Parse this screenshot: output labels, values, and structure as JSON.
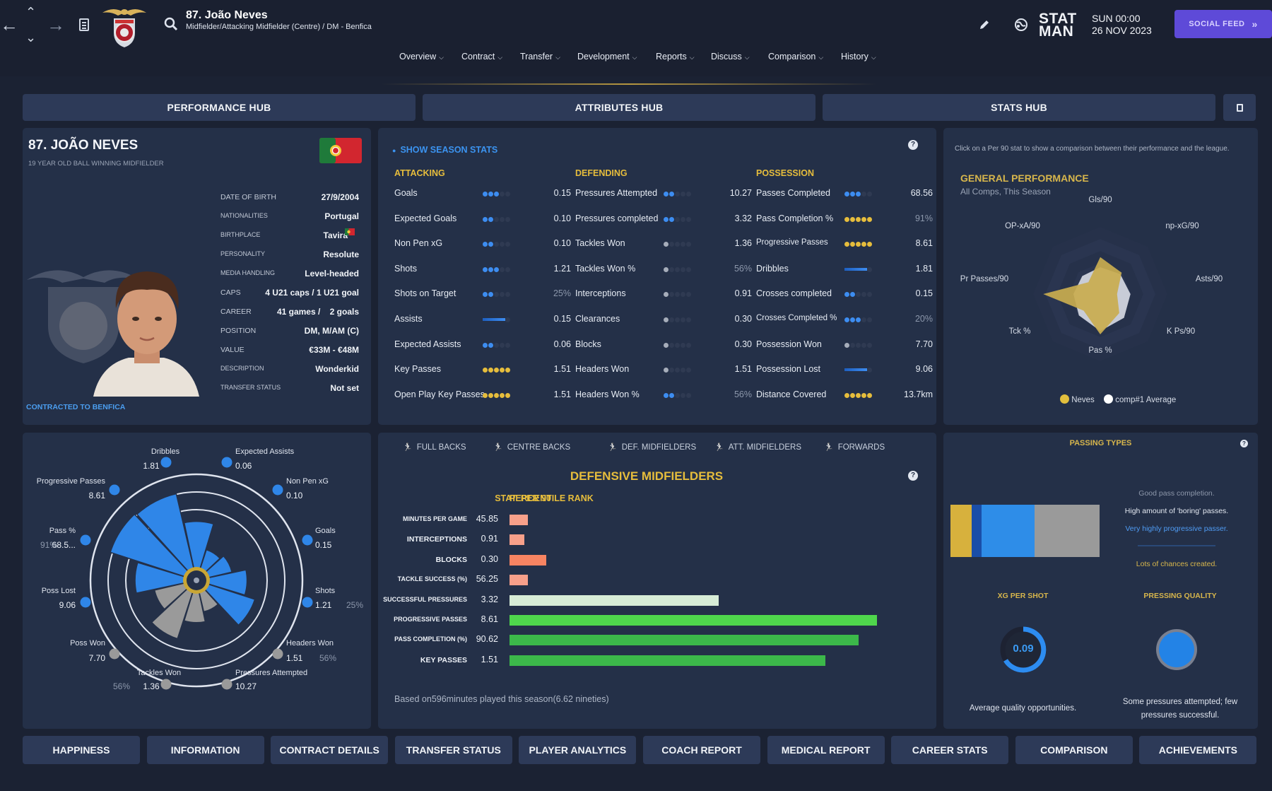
{
  "header": {
    "player_title": "87. João Neves",
    "player_subtitle": "Midfielder/Attacking Midfielder (Centre) / DM - Benfica",
    "stat_line1": "STAT",
    "stat_line2": "MAN",
    "day_time": "SUN 00:00",
    "date": "26 NOV 2023",
    "social_feed": "SOCIAL FEED"
  },
  "menu": [
    "Overview",
    "Contract",
    "Transfer",
    "Development",
    "Reports",
    "Discuss",
    "Comparison",
    "History"
  ],
  "hubs": [
    "PERFORMANCE HUB",
    "ATTRIBUTES HUB",
    "STATS HUB"
  ],
  "profile": {
    "name": "87. JOÃO NEVES",
    "subtitle": "19 YEAR OLD BALL WINNING MIDFIELDER",
    "contracted": "CONTRACTED TO BENFICA",
    "rows": [
      {
        "label": "DATE OF BIRTH",
        "value": "27/9/2004"
      },
      {
        "label": "NATIONALITIES",
        "value": "Portugal"
      },
      {
        "label": "BIRTHPLACE",
        "value": "Tavira"
      },
      {
        "label": "PERSONALITY",
        "value": "Resolute"
      },
      {
        "label": "MEDIA HANDLING",
        "value": "Level-headed"
      },
      {
        "label": "CAPS",
        "value": "4 U21 caps / 1 U21 goal"
      },
      {
        "label": "CAREER",
        "value": "41 games /    2 goals"
      },
      {
        "label": "POSITION",
        "value": "DM, M/AM (C)"
      },
      {
        "label": "VALUE",
        "value": "€33M - €48M"
      },
      {
        "label": "DESCRIPTION",
        "value": "Wonderkid"
      },
      {
        "label": "TRANSFER STATUS",
        "value": "Not set"
      }
    ]
  },
  "season_stats": {
    "toggle": "SHOW SEASON STATS",
    "columns": [
      {
        "heading": "ATTACKING",
        "rows": [
          {
            "label": "Goals",
            "value": "0.15",
            "dots": 3,
            "color": "blue",
            "dim": false
          },
          {
            "label": "Expected Goals",
            "value": "0.10",
            "dots": 2,
            "color": "blue",
            "dim": false
          },
          {
            "label": "Non Pen xG",
            "value": "0.10",
            "dots": 2,
            "color": "blue",
            "dim": false
          },
          {
            "label": "Shots",
            "value": "1.21",
            "dots": 3,
            "color": "blue",
            "dim": false
          },
          {
            "label": "Shots on Target",
            "value": "25%",
            "dots": 2,
            "color": "blue",
            "dim": true
          },
          {
            "label": "Assists",
            "value": "0.15",
            "dots": 4,
            "color": "bluebar",
            "dim": false
          },
          {
            "label": "Expected Assists",
            "value": "0.06",
            "dots": 2,
            "color": "blue",
            "dim": false
          },
          {
            "label": "Key Passes",
            "value": "1.51",
            "dots": 5,
            "color": "gold",
            "dim": false
          },
          {
            "label": "Open Play Key Passes",
            "value": "1.51",
            "dots": 5,
            "color": "gold",
            "dim": false
          }
        ]
      },
      {
        "heading": "DEFENDING",
        "rows": [
          {
            "label": "Pressures Attempted",
            "value": "10.27",
            "dots": 2,
            "color": "blue",
            "dim": false
          },
          {
            "label": "Pressures completed",
            "value": "3.32",
            "dots": 2,
            "color": "blue",
            "dim": false
          },
          {
            "label": "Tackles Won",
            "value": "1.36",
            "dots": 1,
            "color": "grey",
            "dim": false
          },
          {
            "label": "Tackles Won %",
            "value": "56%",
            "dots": 1,
            "color": "grey",
            "dim": true
          },
          {
            "label": "Interceptions",
            "value": "0.91",
            "dots": 1,
            "color": "grey",
            "dim": false
          },
          {
            "label": "Clearances",
            "value": "0.30",
            "dots": 1,
            "color": "grey",
            "dim": false
          },
          {
            "label": "Blocks",
            "value": "0.30",
            "dots": 1,
            "color": "grey",
            "dim": false
          },
          {
            "label": "Headers Won",
            "value": "1.51",
            "dots": 1,
            "color": "grey",
            "dim": false
          },
          {
            "label": "Headers Won %",
            "value": "56%",
            "dots": 2,
            "color": "blue",
            "dim": true
          }
        ]
      },
      {
        "heading": "POSSESSION",
        "rows": [
          {
            "label": "Passes Completed",
            "value": "68.56",
            "dots": 3,
            "color": "blue",
            "dim": false
          },
          {
            "label": "Pass Completion %",
            "value": "91%",
            "dots": 5,
            "color": "gold",
            "dim": true
          },
          {
            "label": "Progressive Passes",
            "value": "8.61",
            "dots": 5,
            "color": "gold",
            "dim": false
          },
          {
            "label": "Dribbles",
            "value": "1.81",
            "dots": 4,
            "color": "bluebar",
            "dim": false
          },
          {
            "label": "Crosses completed",
            "value": "0.15",
            "dots": 2,
            "color": "blue",
            "dim": false
          },
          {
            "label": "Crosses Completed %",
            "value": "20%",
            "dots": 3,
            "color": "blue",
            "dim": true
          },
          {
            "label": "Possession Won",
            "value": "7.70",
            "dots": 1,
            "color": "grey",
            "dim": false
          },
          {
            "label": "Possession Lost",
            "value": "9.06",
            "dots": 4,
            "color": "bluebar",
            "dim": false
          },
          {
            "label": "Distance Covered",
            "value": "13.7km",
            "dots": 5,
            "color": "gold",
            "dim": false
          }
        ]
      }
    ]
  },
  "general_performance": {
    "hint": "Click on a Per 90 stat to show a comparison between their performance and the league.",
    "title": "GENERAL PERFORMANCE",
    "subtitle": "All Comps, This Season",
    "axes": [
      "Gls/90",
      "np-xG/90",
      "Asts/90",
      "K Ps/90",
      "Pas %",
      "Tck %",
      "Pr Passes/90",
      "OP-xA/90"
    ],
    "legend_player": "Neves",
    "legend_avg": "comp#1 Average"
  },
  "radial": {
    "items": [
      {
        "label": "Dribbles",
        "value": "1.81",
        "extra": ""
      },
      {
        "label": "Expected Assists",
        "value": "0.06",
        "extra": ""
      },
      {
        "label": "Non Pen xG",
        "value": "0.10",
        "extra": ""
      },
      {
        "label": "Goals",
        "value": "0.15",
        "extra": ""
      },
      {
        "label": "Shots",
        "value": "1.21",
        "extra": "25%"
      },
      {
        "label": "Headers Won",
        "value": "1.51",
        "extra": "56%"
      },
      {
        "label": "Pressures Attempted",
        "value": "10.27",
        "extra": ""
      },
      {
        "label": "Tackles Won",
        "value": "1.36",
        "extra": "56%"
      },
      {
        "label": "Poss Won",
        "value": "7.70",
        "extra": ""
      },
      {
        "label": "Poss Lost",
        "value": "9.06",
        "extra": ""
      },
      {
        "label": "Pass %",
        "value": "68.5...",
        "extra": "91%"
      },
      {
        "label": "Progressive Passes",
        "value": "8.61",
        "extra": ""
      }
    ]
  },
  "comparison": {
    "positions": [
      "FULL BACKS",
      "CENTRE BACKS",
      "DEF. MIDFIELDERS",
      "ATT. MIDFIELDERS",
      "FORWARDS"
    ],
    "title": "DEFENSIVE MIDFIELDERS",
    "col_stat": "STAT",
    "col_per90": "PER 90",
    "col_rank": "PERCENTILE RANK",
    "footer": "Based on596minutes played this season(6.62 nineties)"
  },
  "chart_data": {
    "type": "bar",
    "categories": [
      "MINUTES PER GAME",
      "INTERCEPTIONS",
      "BLOCKS",
      "TACKLE SUCCESS (%)",
      "SUCCESSFUL PRESSURES",
      "PROGRESSIVE PASSES",
      "PASS COMPLETION (%)",
      "KEY PASSES"
    ],
    "per90": [
      "45.85",
      "0.91",
      "0.30",
      "56.25",
      "3.32",
      "8.61",
      "90.62",
      "1.51"
    ],
    "percentile": [
      5,
      4,
      10,
      5,
      57,
      100,
      95,
      86
    ],
    "colors": [
      "#f7a08a",
      "#f7a08a",
      "#f78462",
      "#f7a08a",
      "#d7ecd6",
      "#4fd64c",
      "#3cb84a",
      "#3cb84a"
    ]
  },
  "passing": {
    "title": "PASSING TYPES",
    "notes": [
      "Good pass completion.",
      "High amount of 'boring' passes.",
      "Very highly progressive passer.",
      "Lots of chances created."
    ],
    "xg_title": "XG PER SHOT",
    "xg_value": "0.09",
    "xg_note": "Average quality opportunities.",
    "press_title": "PRESSING QUALITY",
    "press_note": "Some pressures attempted; few pressures successful."
  },
  "bottom_tabs": [
    "HAPPINESS",
    "INFORMATION",
    "CONTRACT DETAILS",
    "TRANSFER STATUS",
    "PLAYER ANALYTICS",
    "COACH REPORT",
    "MEDICAL REPORT",
    "CAREER STATS",
    "COMPARISON",
    "ACHIEVEMENTS"
  ],
  "colors": {
    "accent": "#d7b64c",
    "blue": "#2f86e8",
    "panel": "#243048",
    "tab": "#2d3a58",
    "social": "#5e4ad8"
  }
}
